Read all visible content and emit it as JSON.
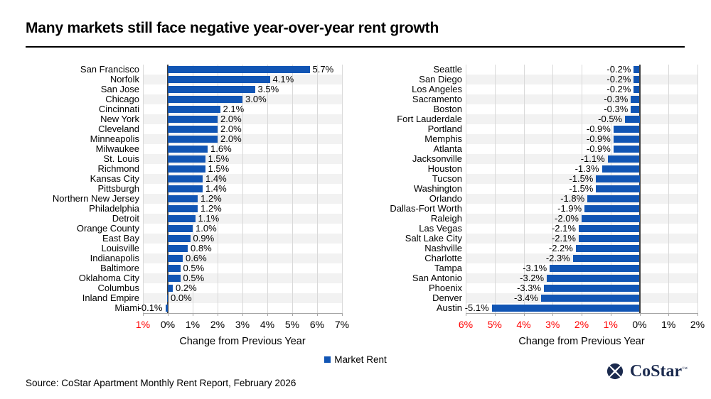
{
  "title": "Many markets still face negative year-over-year rent growth",
  "source": "Source: CoStar Apartment Monthly Rent Report, February 2026",
  "legend": {
    "label": "Market Rent"
  },
  "logo": {
    "text": "CoStar",
    "trademark": "™",
    "color": "#1b2a4e"
  },
  "colors": {
    "bar": "#1155b4",
    "negative_tick": "#ff0000",
    "positive_tick": "#000000",
    "gridline": "#d9d9d9",
    "zero_line": "#3f3f3f",
    "row_stripe": "#f2f2f2",
    "axis_line": "#a6a6a6"
  },
  "chart_data": [
    {
      "type": "bar",
      "orientation": "horizontal",
      "series_name": "Market Rent",
      "xlabel": "Change from Previous Year",
      "xlim": [
        -1,
        7
      ],
      "grid": true,
      "xtick_values": [
        -1,
        0,
        1,
        2,
        3,
        4,
        5,
        6,
        7
      ],
      "xtick_labels": [
        "1%",
        "0%",
        "1%",
        "2%",
        "3%",
        "4%",
        "5%",
        "6%",
        "7%"
      ],
      "categories": [
        "San Francisco",
        "Norfolk",
        "San Jose",
        "Chicago",
        "Cincinnati",
        "New York",
        "Cleveland",
        "Minneapolis",
        "Milwaukee",
        "St. Louis",
        "Richmond",
        "Kansas City",
        "Pittsburgh",
        "Northern New Jersey",
        "Philadelphia",
        "Detroit",
        "Orange County",
        "East Bay",
        "Louisville",
        "Indianapolis",
        "Baltimore",
        "Oklahoma City",
        "Columbus",
        "Inland Empire",
        "Miami"
      ],
      "values": [
        5.7,
        4.1,
        3.5,
        3.0,
        2.1,
        2.0,
        2.0,
        2.0,
        1.6,
        1.5,
        1.5,
        1.4,
        1.4,
        1.2,
        1.2,
        1.1,
        1.0,
        0.9,
        0.8,
        0.6,
        0.5,
        0.5,
        0.2,
        0.0,
        -0.1
      ],
      "value_labels": [
        "5.7%",
        "4.1%",
        "3.5%",
        "3.0%",
        "2.1%",
        "2.0%",
        "2.0%",
        "2.0%",
        "1.6%",
        "1.5%",
        "1.5%",
        "1.4%",
        "1.4%",
        "1.2%",
        "1.2%",
        "1.1%",
        "1.0%",
        "0.9%",
        "0.8%",
        "0.6%",
        "0.5%",
        "0.5%",
        "0.2%",
        "0.0%",
        "-0.1%"
      ]
    },
    {
      "type": "bar",
      "orientation": "horizontal",
      "series_name": "Market Rent",
      "xlabel": "Change from Previous Year",
      "xlim": [
        -6,
        2
      ],
      "grid": true,
      "xtick_values": [
        -6,
        -5,
        -4,
        -3,
        -2,
        -1,
        0,
        1,
        2
      ],
      "xtick_labels": [
        "6%",
        "5%",
        "4%",
        "3%",
        "2%",
        "1%",
        "0%",
        "1%",
        "2%"
      ],
      "categories": [
        "Seattle",
        "San Diego",
        "Los Angeles",
        "Sacramento",
        "Boston",
        "Fort Lauderdale",
        "Portland",
        "Memphis",
        "Atlanta",
        "Jacksonville",
        "Houston",
        "Tucson",
        "Washington",
        "Orlando",
        "Dallas-Fort Worth",
        "Raleigh",
        "Las Vegas",
        "Salt Lake City",
        "Nashville",
        "Charlotte",
        "Tampa",
        "San Antonio",
        "Phoenix",
        "Denver",
        "Austin"
      ],
      "values": [
        -0.2,
        -0.2,
        -0.2,
        -0.3,
        -0.3,
        -0.5,
        -0.9,
        -0.9,
        -0.9,
        -1.1,
        -1.3,
        -1.5,
        -1.5,
        -1.8,
        -1.9,
        -2.0,
        -2.1,
        -2.1,
        -2.2,
        -2.3,
        -3.1,
        -3.2,
        -3.3,
        -3.4,
        -5.1
      ],
      "value_labels": [
        "-0.2%",
        "-0.2%",
        "-0.2%",
        "-0.3%",
        "-0.3%",
        "-0.5%",
        "-0.9%",
        "-0.9%",
        "-0.9%",
        "-1.1%",
        "-1.3%",
        "-1.5%",
        "-1.5%",
        "-1.8%",
        "-1.9%",
        "-2.0%",
        "-2.1%",
        "-2.1%",
        "-2.2%",
        "-2.3%",
        "-3.1%",
        "-3.2%",
        "-3.3%",
        "-3.4%",
        "-5.1%"
      ]
    }
  ]
}
